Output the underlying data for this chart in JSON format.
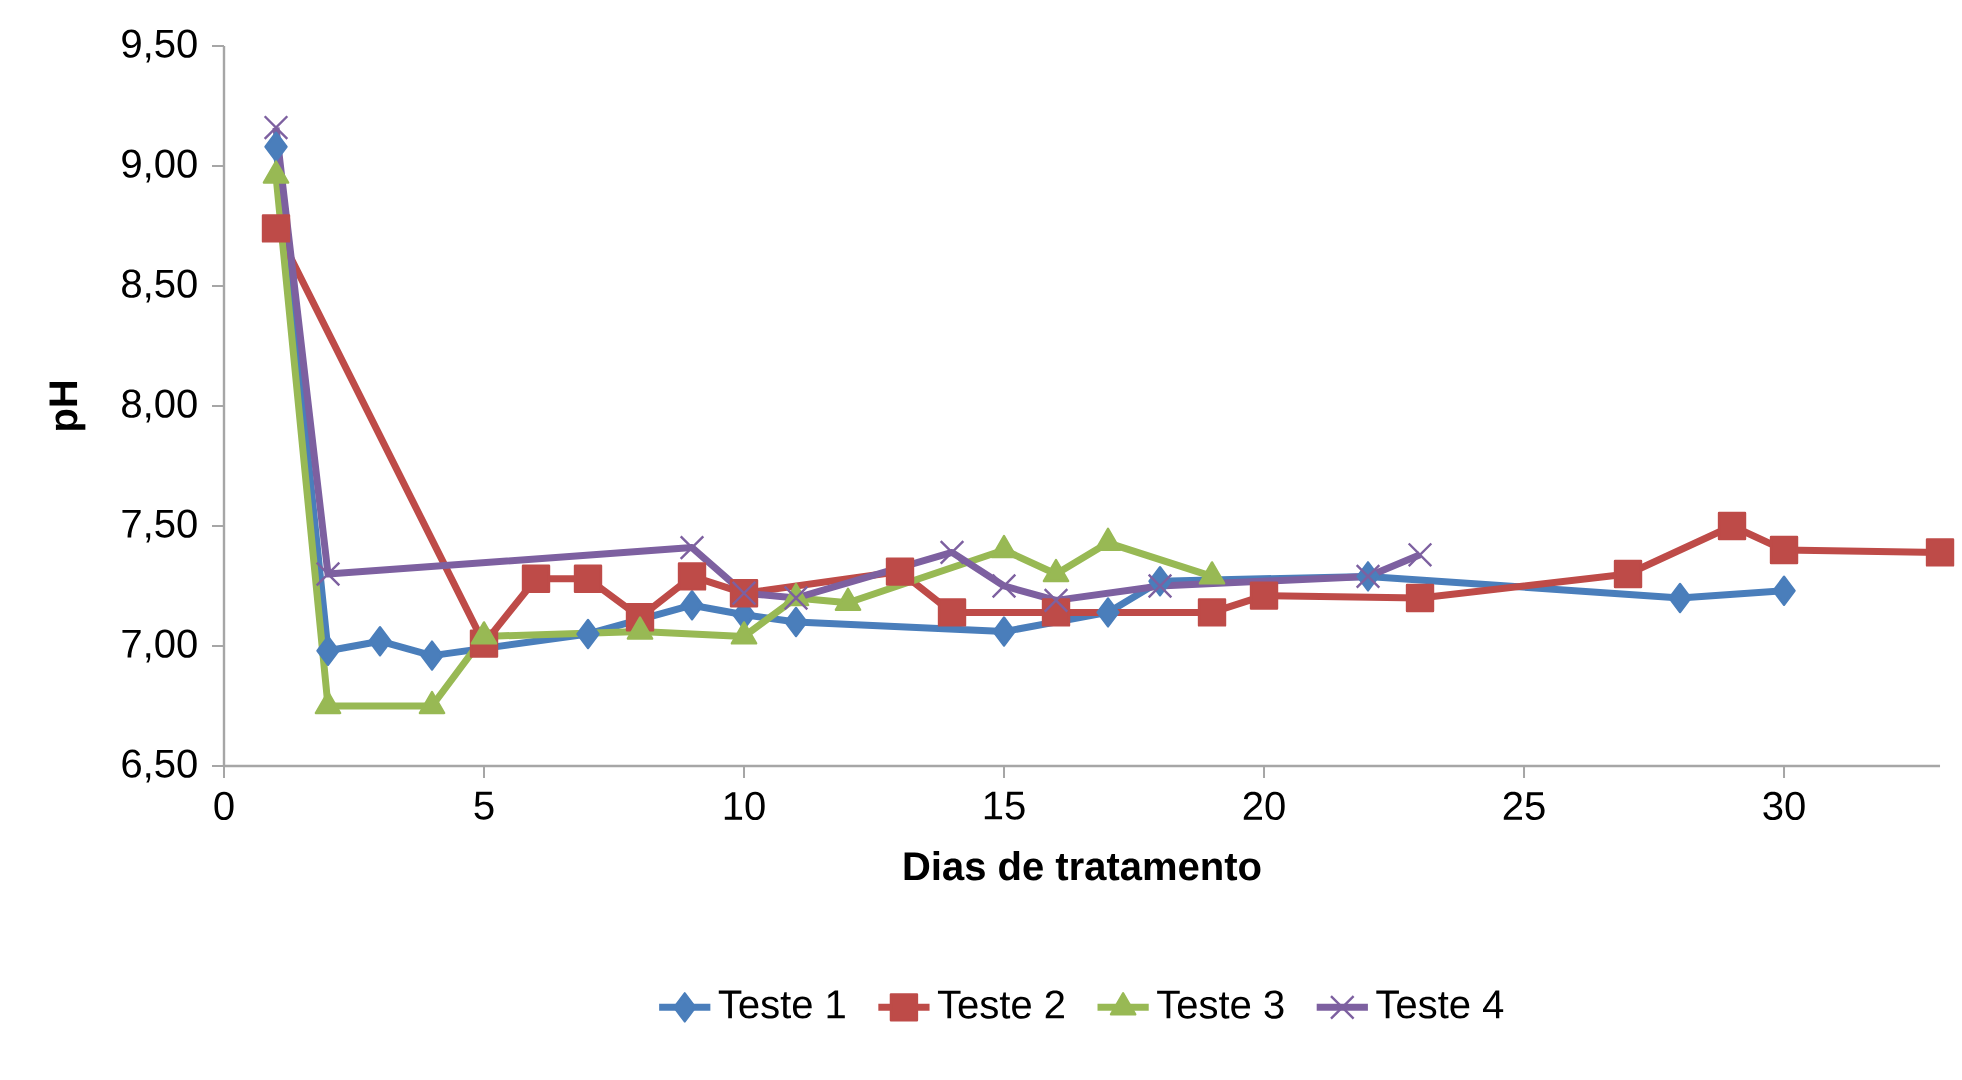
{
  "chart_data": {
    "type": "line",
    "xlabel": "Dias de tratamento",
    "ylabel": "pH",
    "xlim": [
      0,
      33
    ],
    "xticks": [
      0,
      5,
      10,
      15,
      20,
      25,
      30
    ],
    "ylim": [
      6.5,
      9.5
    ],
    "yticks": [
      {
        "value": 6.5,
        "label": "6,50"
      },
      {
        "value": 7.0,
        "label": "7,00"
      },
      {
        "value": 7.5,
        "label": "7,50"
      },
      {
        "value": 8.0,
        "label": "8,00"
      },
      {
        "value": 8.5,
        "label": "8,50"
      },
      {
        "value": 9.0,
        "label": "9,00"
      },
      {
        "value": 9.5,
        "label": "9,50"
      }
    ],
    "grid": false,
    "legend": "bottom",
    "line_style": "solid",
    "series": [
      {
        "name": "Teste 1",
        "color": "#4a7ebb",
        "marker": "diamond",
        "x": [
          1,
          2,
          3,
          4,
          5,
          7,
          9,
          10,
          11,
          15,
          17,
          18,
          22,
          28,
          30
        ],
        "values": [
          9.08,
          6.98,
          7.02,
          6.96,
          null,
          7.05,
          7.17,
          7.13,
          7.1,
          7.06,
          7.14,
          7.27,
          7.29,
          7.2,
          7.23
        ]
      },
      {
        "name": "Teste 2",
        "color": "#be4b48",
        "marker": "square",
        "x": [
          1,
          5,
          6,
          7,
          8,
          9,
          10,
          13,
          14,
          16,
          19,
          20,
          23,
          27,
          29,
          30,
          33
        ],
        "values": [
          8.74,
          7.01,
          7.28,
          7.28,
          7.12,
          7.29,
          7.22,
          7.31,
          7.14,
          7.14,
          7.14,
          7.21,
          7.2,
          7.3,
          7.5,
          7.4,
          7.39
        ]
      },
      {
        "name": "Teste 3",
        "color": "#98b954",
        "marker": "triangle",
        "x": [
          1,
          2,
          4,
          5,
          8,
          10,
          11,
          12,
          15,
          16,
          17,
          19
        ],
        "values": [
          8.96,
          6.75,
          6.75,
          7.04,
          7.06,
          7.04,
          7.2,
          7.18,
          7.4,
          7.3,
          7.43,
          7.29
        ]
      },
      {
        "name": "Teste 4",
        "color": "#7d60a0",
        "marker": "cross",
        "x": [
          1,
          2,
          9,
          10,
          11,
          14,
          15,
          16,
          18,
          22,
          23
        ],
        "values": [
          9.16,
          7.3,
          7.41,
          7.22,
          7.2,
          7.39,
          7.25,
          7.19,
          7.25,
          7.29,
          7.38
        ]
      }
    ]
  }
}
